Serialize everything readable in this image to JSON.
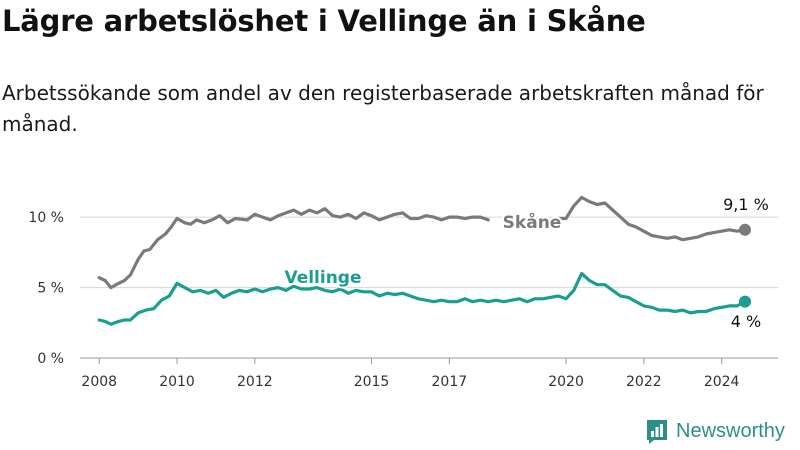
{
  "title": "Lägre arbetslöshet i Vellinge än i Skåne",
  "subtitle": "Arbetssökande som andel av den registerbaserade arbetskraften månad för månad.",
  "brand": {
    "name": "Newsworthy",
    "color": "#2e8f8a",
    "icon": "bar-chart-icon"
  },
  "chart_data": {
    "type": "line",
    "title": "Lägre arbetslöshet i Vellinge än i Skåne",
    "xlabel": "",
    "ylabel": "",
    "xlim": [
      2007.3,
      2025.5
    ],
    "ylim": [
      0,
      11.5
    ],
    "grid": true,
    "y_ticks": [
      0,
      5,
      10
    ],
    "y_tick_labels": [
      "0 %",
      "5 %",
      "10 %"
    ],
    "x_ticks": [
      2008,
      2010,
      2012,
      2015,
      2017,
      2020,
      2022,
      2024
    ],
    "x_tick_labels": [
      "2008",
      "2010",
      "2012",
      "2015",
      "2017",
      "2020",
      "2022",
      "2024"
    ],
    "series": [
      {
        "name": "Skåne",
        "color": "#7a7a7a",
        "end_label": "9,1 %",
        "x": [
          2008.0,
          2008.15,
          2008.3,
          2008.5,
          2008.65,
          2008.8,
          2009.0,
          2009.15,
          2009.3,
          2009.5,
          2009.7,
          2009.85,
          2010.0,
          2010.2,
          2010.35,
          2010.5,
          2010.7,
          2010.9,
          2011.1,
          2011.3,
          2011.5,
          2011.8,
          2012.0,
          2012.2,
          2012.4,
          2012.6,
          2012.8,
          2013.0,
          2013.2,
          2013.4,
          2013.6,
          2013.8,
          2014.0,
          2014.2,
          2014.4,
          2014.6,
          2014.8,
          2015.0,
          2015.2,
          2015.4,
          2015.6,
          2015.8,
          2016.0,
          2016.2,
          2016.4,
          2016.6,
          2016.8,
          2017.0,
          2017.2,
          2017.4,
          2017.6,
          2017.8,
          2018.0,
          2019.8,
          2020.0,
          2020.2,
          2020.4,
          2020.6,
          2020.8,
          2021.0,
          2021.2,
          2021.4,
          2021.6,
          2021.8,
          2022.0,
          2022.2,
          2022.4,
          2022.6,
          2022.8,
          2023.0,
          2023.2,
          2023.4,
          2023.6,
          2023.8,
          2024.0,
          2024.2,
          2024.4,
          2024.6
        ],
        "values": [
          5.7,
          5.5,
          5.0,
          5.3,
          5.5,
          5.9,
          7.0,
          7.6,
          7.7,
          8.4,
          8.8,
          9.3,
          9.9,
          9.6,
          9.5,
          9.8,
          9.6,
          9.8,
          10.1,
          9.6,
          9.9,
          9.8,
          10.2,
          10.0,
          9.8,
          10.1,
          10.3,
          10.5,
          10.2,
          10.5,
          10.3,
          10.6,
          10.1,
          10.0,
          10.2,
          9.9,
          10.3,
          10.1,
          9.8,
          10.0,
          10.2,
          10.3,
          9.9,
          9.9,
          10.1,
          10.0,
          9.8,
          10.0,
          10.0,
          9.9,
          10.0,
          10.0,
          9.8,
          9.9,
          9.9,
          10.8,
          11.4,
          11.1,
          10.9,
          11.0,
          10.5,
          10.0,
          9.5,
          9.3,
          9.0,
          8.7,
          8.6,
          8.5,
          8.6,
          8.4,
          8.5,
          8.6,
          8.8,
          8.9,
          9.0,
          9.1,
          9.0,
          9.1
        ]
      },
      {
        "name": "Vellinge",
        "color": "#1a9e8f",
        "end_label": "4 %",
        "x": [
          2008.0,
          2008.15,
          2008.3,
          2008.5,
          2008.65,
          2008.8,
          2009.0,
          2009.2,
          2009.4,
          2009.6,
          2009.8,
          2010.0,
          2010.2,
          2010.4,
          2010.6,
          2010.8,
          2011.0,
          2011.2,
          2011.4,
          2011.6,
          2011.8,
          2012.0,
          2012.2,
          2012.4,
          2012.6,
          2012.8,
          2013.0,
          2013.2,
          2013.4,
          2013.6,
          2013.8,
          2014.0,
          2014.2,
          2014.4,
          2014.6,
          2014.8,
          2015.0,
          2015.2,
          2015.4,
          2015.6,
          2015.8,
          2016.0,
          2016.2,
          2016.4,
          2016.6,
          2016.8,
          2017.0,
          2017.2,
          2017.4,
          2017.6,
          2017.8,
          2018.0,
          2018.2,
          2018.4,
          2018.6,
          2018.8,
          2019.0,
          2019.2,
          2019.4,
          2019.6,
          2019.8,
          2020.0,
          2020.2,
          2020.4,
          2020.6,
          2020.8,
          2021.0,
          2021.2,
          2021.4,
          2021.6,
          2021.8,
          2022.0,
          2022.2,
          2022.4,
          2022.6,
          2022.8,
          2023.0,
          2023.2,
          2023.4,
          2023.6,
          2023.8,
          2024.0,
          2024.2,
          2024.4,
          2024.6
        ],
        "values": [
          2.7,
          2.6,
          2.4,
          2.6,
          2.7,
          2.7,
          3.2,
          3.4,
          3.5,
          4.1,
          4.4,
          5.3,
          5.0,
          4.7,
          4.8,
          4.6,
          4.8,
          4.3,
          4.6,
          4.8,
          4.7,
          4.9,
          4.7,
          4.9,
          5.0,
          4.8,
          5.1,
          4.9,
          4.9,
          5.0,
          4.8,
          4.7,
          4.9,
          4.6,
          4.8,
          4.7,
          4.7,
          4.4,
          4.6,
          4.5,
          4.6,
          4.4,
          4.2,
          4.1,
          4.0,
          4.1,
          4.0,
          4.0,
          4.2,
          4.0,
          4.1,
          4.0,
          4.1,
          4.0,
          4.1,
          4.2,
          4.0,
          4.2,
          4.2,
          4.3,
          4.4,
          4.2,
          4.8,
          6.0,
          5.5,
          5.2,
          5.2,
          4.8,
          4.4,
          4.3,
          4.0,
          3.7,
          3.6,
          3.4,
          3.4,
          3.3,
          3.4,
          3.2,
          3.3,
          3.3,
          3.5,
          3.6,
          3.7,
          3.7,
          4.0
        ]
      }
    ]
  }
}
